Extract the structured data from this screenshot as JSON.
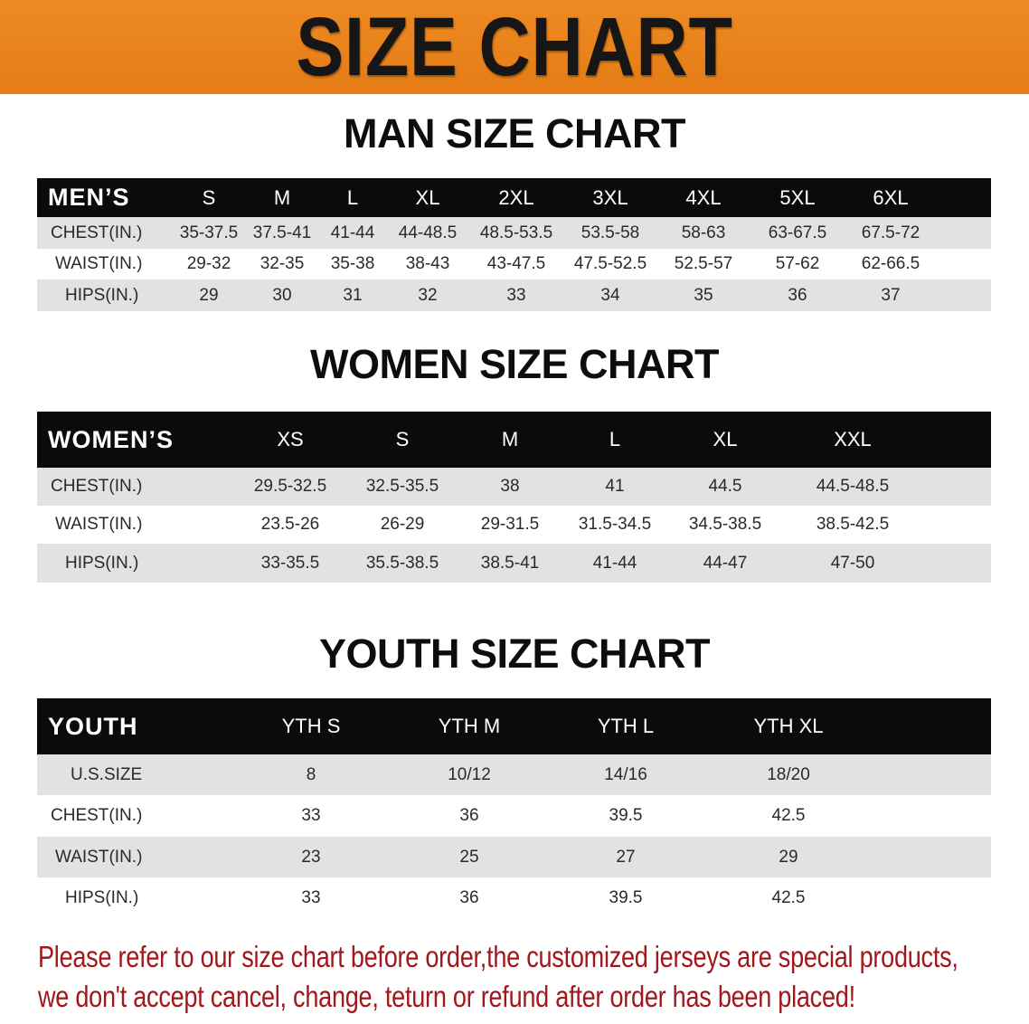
{
  "banner_title": "SIZE CHART",
  "men": {
    "title": "MAN SIZE CHART",
    "header": "MEN’S",
    "sizes": [
      "S",
      "M",
      "L",
      "XL",
      "2XL",
      "3XL",
      "4XL",
      "5XL",
      "6XL"
    ],
    "rows": [
      {
        "label": "CHEST(IN.)",
        "values": [
          "35-37.5",
          "37.5-41",
          "41-44",
          "44-48.5",
          "48.5-53.5",
          "53.5-58",
          "58-63",
          "63-67.5",
          "67.5-72"
        ]
      },
      {
        "label": "WAIST(IN.)",
        "values": [
          "29-32",
          "32-35",
          "35-38",
          "38-43",
          "43-47.5",
          "47.5-52.5",
          "52.5-57",
          "57-62",
          "62-66.5"
        ]
      },
      {
        "label": "HIPS(IN.)",
        "values": [
          "29",
          "30",
          "31",
          "32",
          "33",
          "34",
          "35",
          "36",
          "37"
        ]
      }
    ]
  },
  "women": {
    "title": "WOMEN SIZE CHART",
    "header": "WOMEN’S",
    "sizes": [
      "XS",
      "S",
      "M",
      "L",
      "XL",
      "XXL"
    ],
    "rows": [
      {
        "label": "CHEST(IN.)",
        "values": [
          "29.5-32.5",
          "32.5-35.5",
          "38",
          "41",
          "44.5",
          "44.5-48.5"
        ]
      },
      {
        "label": "WAIST(IN.)",
        "values": [
          "23.5-26",
          "26-29",
          "29-31.5",
          "31.5-34.5",
          "34.5-38.5",
          "38.5-42.5"
        ]
      },
      {
        "label": "HIPS(IN.)",
        "values": [
          "33-35.5",
          "35.5-38.5",
          "38.5-41",
          "41-44",
          "44-47",
          "47-50"
        ]
      }
    ]
  },
  "youth": {
    "title": "YOUTH SIZE CHART",
    "header": "YOUTH",
    "sizes": [
      "YTH S",
      "YTH M",
      "YTH L",
      "YTH XL"
    ],
    "rows": [
      {
        "label": "U.S.SIZE",
        "values": [
          "8",
          "10/12",
          "14/16",
          "18/20"
        ]
      },
      {
        "label": "CHEST(IN.)",
        "values": [
          "33",
          "36",
          "39.5",
          "42.5"
        ]
      },
      {
        "label": "WAIST(IN.)",
        "values": [
          "23",
          "25",
          "27",
          "29"
        ]
      },
      {
        "label": "HIPS(IN.)",
        "values": [
          "33",
          "36",
          "39.5",
          "42.5"
        ]
      }
    ]
  },
  "note": {
    "line1": "Please refer to our size chart before order,the customized jerseys are special products,",
    "line2": "we don't accept cancel, change, teturn or refund after order has been placed!"
  },
  "colors": {
    "banner": "#e8821e",
    "header_row": "#0b0b0b",
    "stripe": "#e2e2e3",
    "note": "#a3171b"
  }
}
